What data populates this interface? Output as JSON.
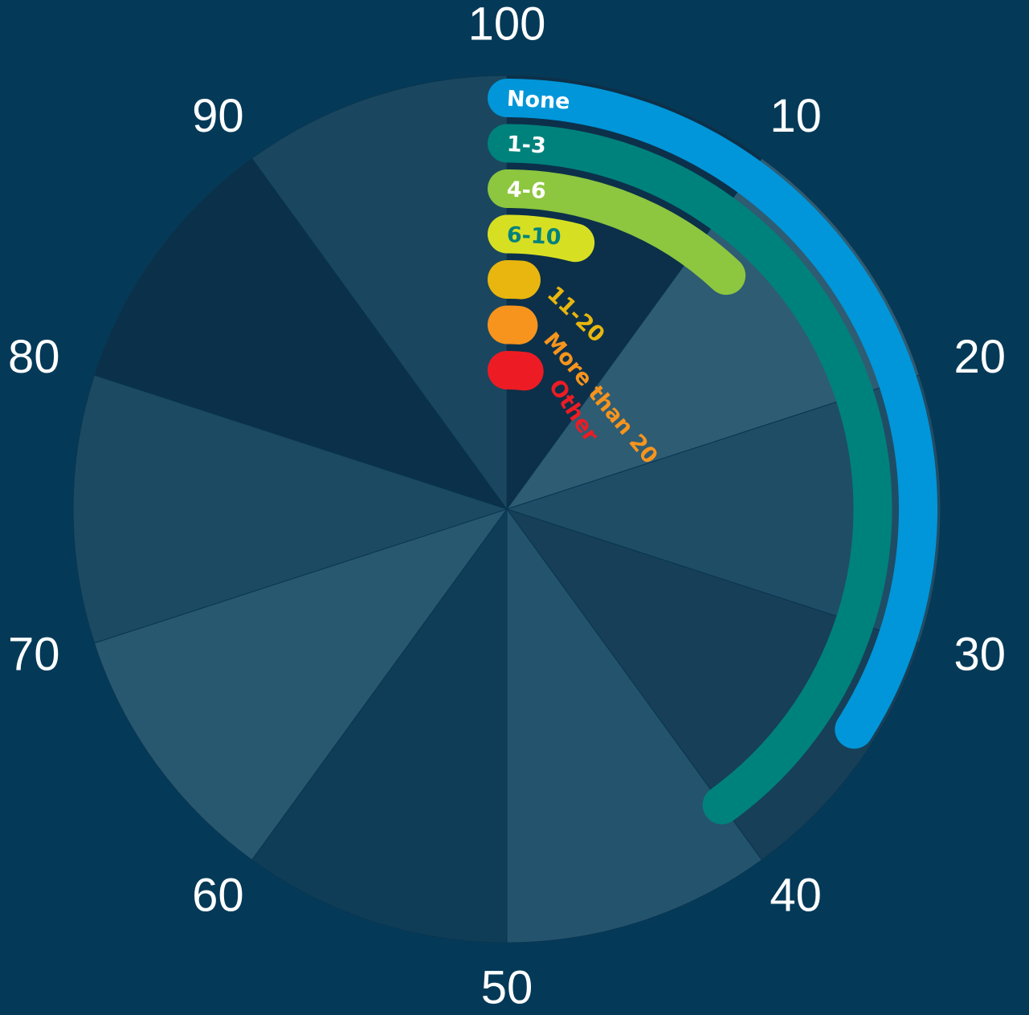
{
  "chart_data": {
    "type": "radial_bar",
    "categories": [
      "None",
      "1-3",
      "4-6",
      "6-10",
      "11-20",
      "More than 20",
      "Other"
    ],
    "values": [
      34,
      40,
      12,
      4,
      1,
      1,
      2
    ],
    "colors": [
      "#0096d9",
      "#00827c",
      "#8dc63f",
      "#d7df23",
      "#e8b60e",
      "#f7941d",
      "#ed1c24"
    ],
    "label_colors": [
      "#ffffff",
      "#ffffff",
      "#ffffff",
      "#00827c",
      "#e8b60e",
      "#f7941d",
      "#ed1c24"
    ],
    "rlim": [
      0,
      100
    ],
    "ticks": [
      10,
      20,
      30,
      40,
      50,
      60,
      70,
      80,
      90,
      100
    ]
  }
}
